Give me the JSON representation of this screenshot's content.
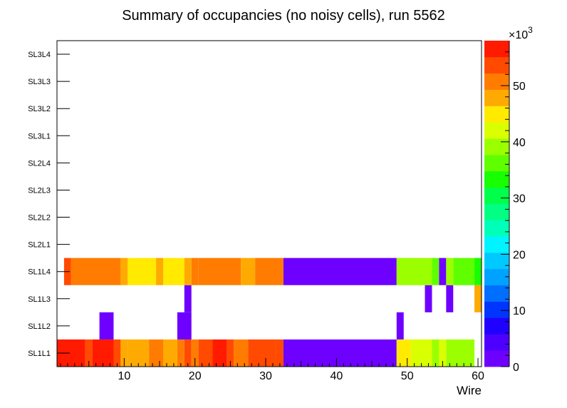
{
  "chart_data": {
    "type": "heatmap",
    "title": "Summary of occupancies (no noisy cells), run 5562",
    "xlabel": "Wire",
    "xlim": [
      0.5,
      60.5
    ],
    "x_ticks": [
      "10",
      "20",
      "30",
      "40",
      "50",
      "60"
    ],
    "y_categories": [
      "SL1L1",
      "SL1L2",
      "SL1L3",
      "SL1L4",
      "SL2L1",
      "SL2L2",
      "SL2L3",
      "SL2L4",
      "SL3L1",
      "SL3L2",
      "SL3L3",
      "SL3L4"
    ],
    "z_range": [
      0,
      58000
    ],
    "z_ticks": [
      "0",
      "10",
      "20",
      "30",
      "40",
      "50"
    ],
    "z_exponent_base": "×10",
    "z_exponent": "3",
    "palette": [
      "#6e00ff",
      "#4d00ff",
      "#2000ff",
      "#0034ff",
      "#006fff",
      "#00a2ff",
      "#00c9ff",
      "#00f4ff",
      "#00ffb8",
      "#00ff83",
      "#00ff4a",
      "#17ff00",
      "#60ff00",
      "#9bff00",
      "#d9ff00",
      "#ffea00",
      "#ffaa00",
      "#ff7c00",
      "#ff4a00",
      "#ff1a00"
    ],
    "rows": [
      {
        "layer": "SL1L1",
        "segments": [
          {
            "from": 1,
            "to": 4,
            "value": 57000
          },
          {
            "from": 5,
            "to": 5,
            "value": 53000
          },
          {
            "from": 6,
            "to": 8,
            "value": 57000
          },
          {
            "from": 9,
            "to": 9,
            "value": 53000
          },
          {
            "from": 10,
            "to": 10,
            "value": 49000
          },
          {
            "from": 11,
            "to": 13,
            "value": 48000
          },
          {
            "from": 14,
            "to": 15,
            "value": 51000
          },
          {
            "from": 16,
            "to": 17,
            "value": 48000
          },
          {
            "from": 18,
            "to": 18,
            "value": 51000
          },
          {
            "from": 19,
            "to": 19,
            "value": 55000
          },
          {
            "from": 20,
            "to": 20,
            "value": 51000
          },
          {
            "from": 21,
            "to": 22,
            "value": 55000
          },
          {
            "from": 23,
            "to": 24,
            "value": 57000
          },
          {
            "from": 25,
            "to": 25,
            "value": 53000
          },
          {
            "from": 26,
            "to": 27,
            "value": 51000
          },
          {
            "from": 28,
            "to": 31,
            "value": 55000
          },
          {
            "from": 32,
            "to": 32,
            "value": 53000
          },
          {
            "from": 33,
            "to": 48,
            "value": 2000
          },
          {
            "from": 49,
            "to": 50,
            "value": 45000
          },
          {
            "from": 51,
            "to": 53,
            "value": 43000
          },
          {
            "from": 54,
            "to": 54,
            "value": 40000
          },
          {
            "from": 55,
            "to": 55,
            "value": 43000
          },
          {
            "from": 56,
            "to": 59,
            "value": 40000
          }
        ]
      },
      {
        "layer": "SL1L2",
        "segments": [
          {
            "from": 7,
            "to": 8,
            "value": 2000
          },
          {
            "from": 18,
            "to": 19,
            "value": 2000
          },
          {
            "from": 49,
            "to": 49,
            "value": 2000
          }
        ]
      },
      {
        "layer": "SL1L3",
        "segments": [
          {
            "from": 19,
            "to": 19,
            "value": 2000
          },
          {
            "from": 53,
            "to": 53,
            "value": 2000
          },
          {
            "from": 56,
            "to": 56,
            "value": 2000
          },
          {
            "from": 60,
            "to": 60,
            "value": 48000
          }
        ]
      },
      {
        "layer": "SL1L4",
        "segments": [
          {
            "from": 2,
            "to": 2,
            "value": 55000
          },
          {
            "from": 3,
            "to": 9,
            "value": 51000
          },
          {
            "from": 10,
            "to": 10,
            "value": 48000
          },
          {
            "from": 11,
            "to": 14,
            "value": 45000
          },
          {
            "from": 15,
            "to": 15,
            "value": 48000
          },
          {
            "from": 16,
            "to": 18,
            "value": 45000
          },
          {
            "from": 19,
            "to": 19,
            "value": 48000
          },
          {
            "from": 20,
            "to": 20,
            "value": 51000
          },
          {
            "from": 21,
            "to": 26,
            "value": 51000
          },
          {
            "from": 27,
            "to": 28,
            "value": 48000
          },
          {
            "from": 29,
            "to": 32,
            "value": 51000
          },
          {
            "from": 33,
            "to": 48,
            "value": 2000
          },
          {
            "from": 49,
            "to": 53,
            "value": 40000
          },
          {
            "from": 54,
            "to": 54,
            "value": 37000
          },
          {
            "from": 55,
            "to": 55,
            "value": 2000
          },
          {
            "from": 56,
            "to": 56,
            "value": 40000
          },
          {
            "from": 57,
            "to": 59,
            "value": 37000
          },
          {
            "from": 60,
            "to": 60,
            "value": 34000
          }
        ]
      }
    ]
  }
}
